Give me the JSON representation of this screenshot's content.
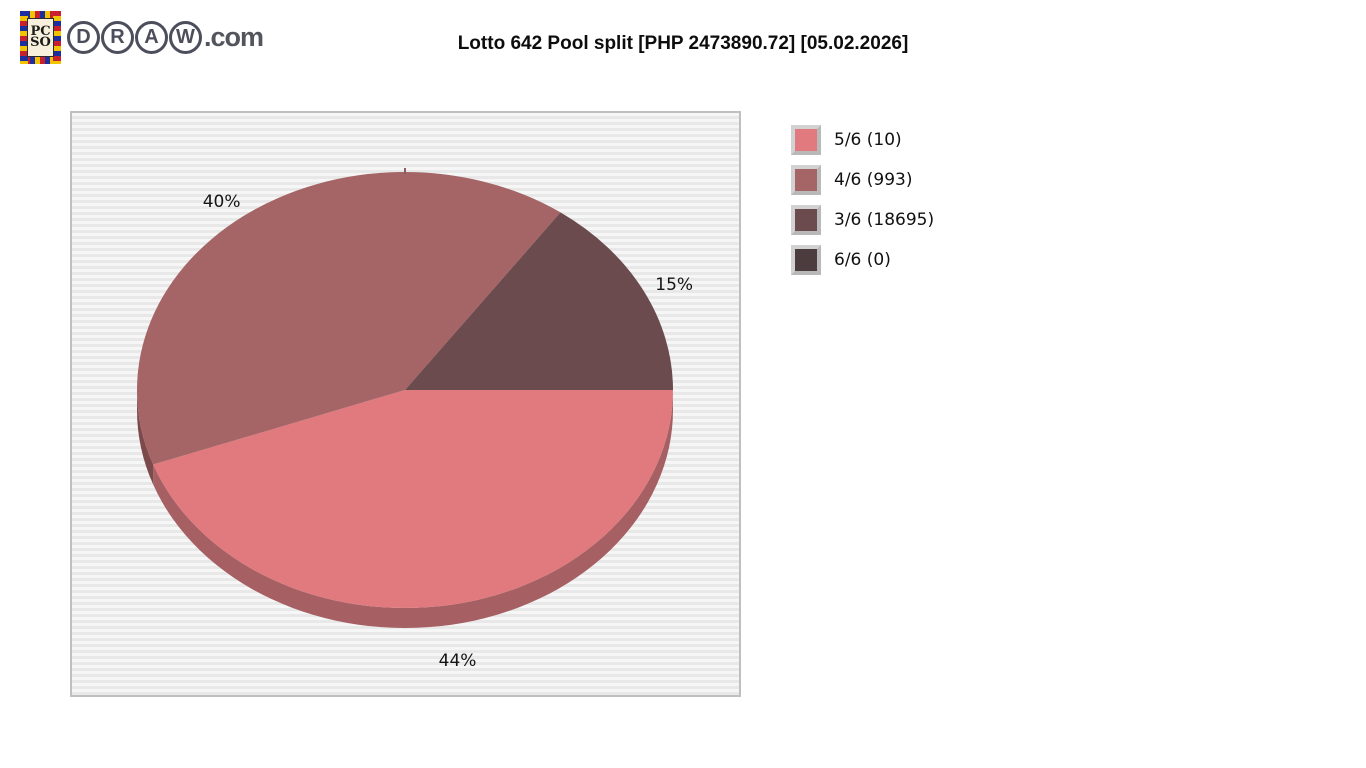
{
  "logo": {
    "emblem_top": "PC",
    "emblem_bottom": "SO",
    "brand_letters": [
      "D",
      "R",
      "A",
      "W"
    ],
    "brand_suffix": ".com"
  },
  "title": "Lotto 642 Pool split [PHP 2473890.72] [05.02.2026]",
  "chart_data": {
    "type": "pie",
    "style": "3d",
    "title": "Lotto 642 Pool split [PHP 2473890.72] [05.02.2026]",
    "pool_amount": "PHP 2473890.72",
    "draw_date": "05.02.2026",
    "legend_position": "right",
    "plot_bg_stripe_colors": [
      "#f6f6f6",
      "#e8e8e8"
    ],
    "slices": [
      {
        "label": "5/6",
        "count": 10,
        "percent": 44,
        "legend_text": "5/6 (10)",
        "color": "#e07a7e",
        "side_color": "#a65f62"
      },
      {
        "label": "4/6",
        "count": 993,
        "percent": 40,
        "legend_text": "4/6 (993)",
        "color": "#a56566",
        "side_color": "#7d4a4b"
      },
      {
        "label": "3/6",
        "count": 18695,
        "percent": 15,
        "legend_text": "3/6 (18695)",
        "color": "#6b4b4d",
        "side_color": "#4f3738"
      },
      {
        "label": "6/6",
        "count": 0,
        "percent": 0,
        "legend_text": "6/6 (0)",
        "color": "#4d3c3e",
        "side_color": "#3a2d2f"
      }
    ]
  }
}
